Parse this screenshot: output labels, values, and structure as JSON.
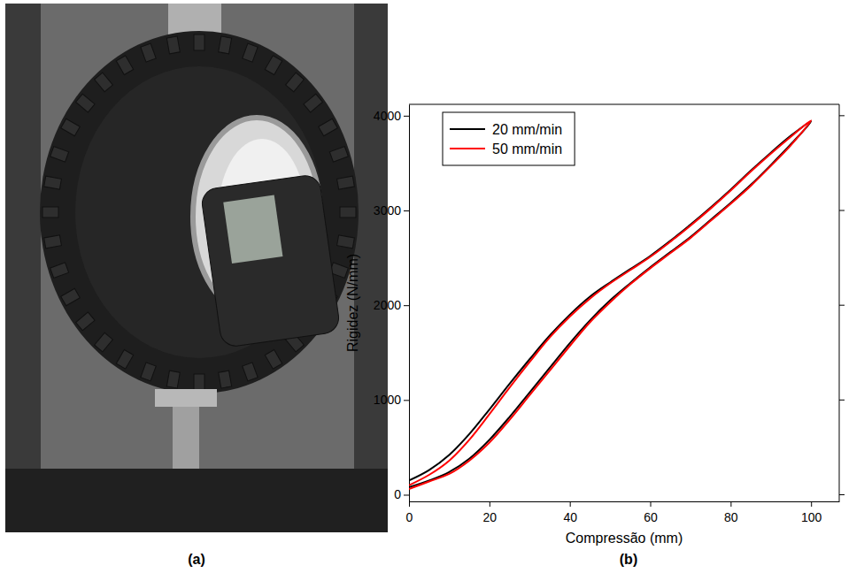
{
  "figure": {
    "panel_labels": [
      "(a)",
      "(b)"
    ]
  },
  "chart_data": {
    "type": "line",
    "x_label": "Compressão (mm)",
    "y_label": "Rigidez (N/mm)",
    "x": [
      0,
      5,
      10,
      15,
      20,
      25,
      30,
      35,
      40,
      45,
      50,
      55,
      60,
      65,
      70,
      75,
      80,
      85,
      90,
      95,
      100,
      95,
      90,
      85,
      80,
      75,
      70,
      65,
      60,
      55,
      50,
      45,
      40,
      35,
      30,
      25,
      20,
      15,
      10,
      5,
      0
    ],
    "series": [
      {
        "name": "20 mm/min",
        "color": "#000000",
        "values": [
          150,
          260,
          420,
          640,
          900,
          1170,
          1430,
          1680,
          1900,
          2090,
          2240,
          2380,
          2520,
          2680,
          2850,
          3030,
          3220,
          3420,
          3610,
          3790,
          3940,
          3700,
          3480,
          3270,
          3080,
          2900,
          2720,
          2560,
          2400,
          2230,
          2050,
          1840,
          1600,
          1340,
          1080,
          820,
          580,
          380,
          240,
          150,
          80
        ]
      },
      {
        "name": "50 mm/min",
        "color": "#ff0000",
        "values": [
          100,
          210,
          360,
          580,
          850,
          1130,
          1400,
          1660,
          1880,
          2070,
          2230,
          2370,
          2510,
          2670,
          2840,
          3020,
          3210,
          3410,
          3600,
          3780,
          3950,
          3690,
          3470,
          3260,
          3070,
          2890,
          2710,
          2550,
          2390,
          2220,
          2030,
          1820,
          1570,
          1310,
          1050,
          790,
          550,
          360,
          220,
          140,
          60
        ]
      }
    ],
    "xlim": [
      0,
      107
    ],
    "xticks": [
      0,
      20,
      40,
      60,
      80,
      100
    ],
    "ylim": [
      -70,
      4120
    ],
    "yticks": [
      0,
      1000,
      2000,
      3000,
      4000
    ],
    "grid": false,
    "legend": "upper left"
  }
}
